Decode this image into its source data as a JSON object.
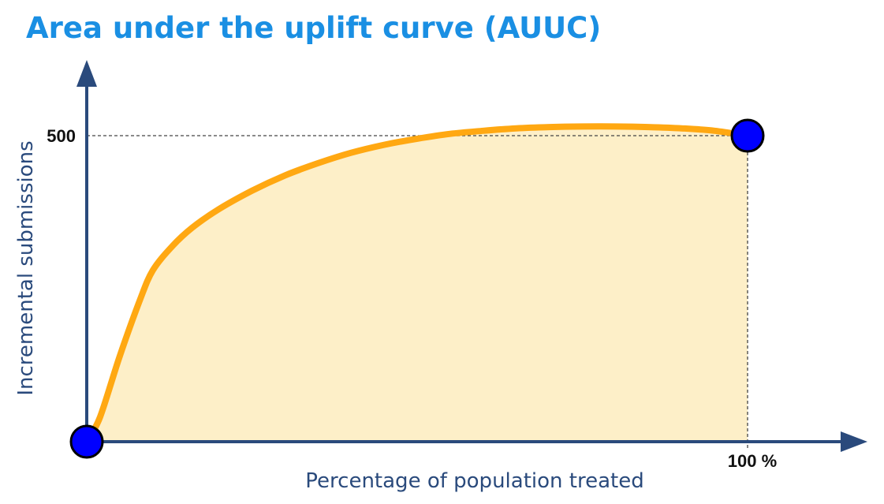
{
  "title": "Area under the uplift curve (AUUC)",
  "chart_data": {
    "type": "area",
    "title": "Area under the uplift curve (AUUC)",
    "xlabel": "Percentage of population treated",
    "ylabel": "Incremental submissions",
    "x_tick_labels": [
      "100 %"
    ],
    "y_tick_labels": [
      "500"
    ],
    "x_unit": "%",
    "xlim": [
      0,
      100
    ],
    "ylim": [
      0,
      500
    ],
    "grid": false,
    "legend": "none",
    "reference_lines": "dashed lines from the 500 tick and the 100 % tick to the end point",
    "series": [
      {
        "x": [
          0,
          2,
          5,
          8,
          10,
          13,
          16,
          20,
          25,
          30,
          35,
          40,
          45,
          50,
          55,
          60,
          65,
          70,
          75,
          80,
          85,
          90,
          95,
          100
        ],
        "y": [
          0,
          40,
          140,
          230,
          280,
          320,
          350,
          380,
          410,
          435,
          455,
          472,
          485,
          495,
          503,
          508,
          512,
          514,
          515,
          515,
          514,
          512,
          508,
          500
        ]
      }
    ],
    "markers": [
      {
        "x": 0,
        "y": 0
      },
      {
        "x": 100,
        "y": 500
      }
    ],
    "colors": {
      "title": "#1a8fe3",
      "axis": "#2a4a7c",
      "curve": "#ffa812",
      "fill": "#fdefc8",
      "marker": "#0000ff",
      "marker_outline": "#000000",
      "reference_line": "#444444",
      "tick_text": "#111111",
      "axis_label": "#2a4a7c"
    }
  }
}
